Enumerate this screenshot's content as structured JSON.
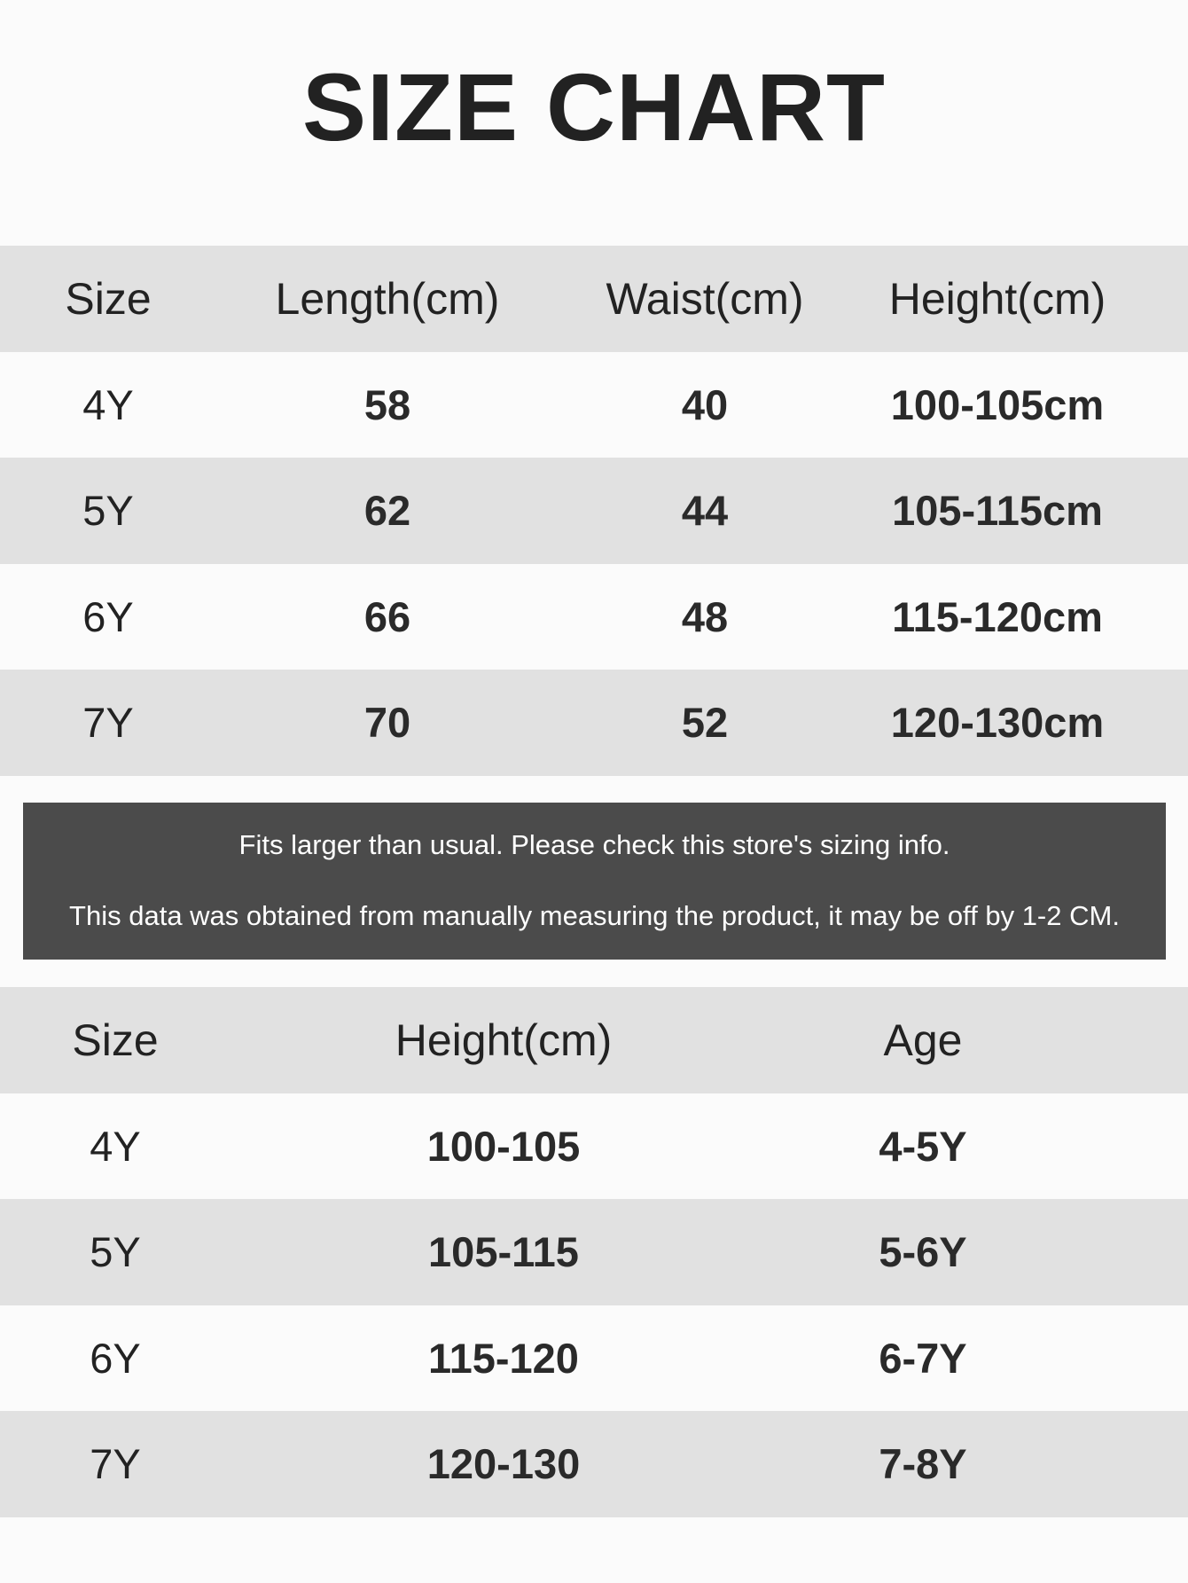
{
  "title": "SIZE CHART",
  "table1": {
    "headers": [
      "Size",
      "Length(cm)",
      "Waist(cm)",
      "Height(cm)"
    ],
    "rows": [
      [
        "4Y",
        "58",
        "40",
        "100-105cm"
      ],
      [
        "5Y",
        "62",
        "44",
        "105-115cm"
      ],
      [
        "6Y",
        "66",
        "48",
        "115-120cm"
      ],
      [
        "7Y",
        "70",
        "52",
        "120-130cm"
      ]
    ]
  },
  "note": {
    "line1": "Fits larger than usual. Please check this store's sizing info.",
    "line2": "This data was obtained from manually measuring the product, it may be off by 1-2 CM."
  },
  "table2": {
    "headers": [
      "Size",
      "Height(cm)",
      "Age"
    ],
    "rows": [
      [
        "4Y",
        "100-105",
        "4-5Y"
      ],
      [
        "5Y",
        "105-115",
        "5-6Y"
      ],
      [
        "6Y",
        "115-120",
        "6-7Y"
      ],
      [
        "7Y",
        "120-130",
        "7-8Y"
      ]
    ]
  },
  "colors": {
    "stripe": "#e1e1e1",
    "note_bg": "#4b4b4b",
    "text": "#222222"
  }
}
